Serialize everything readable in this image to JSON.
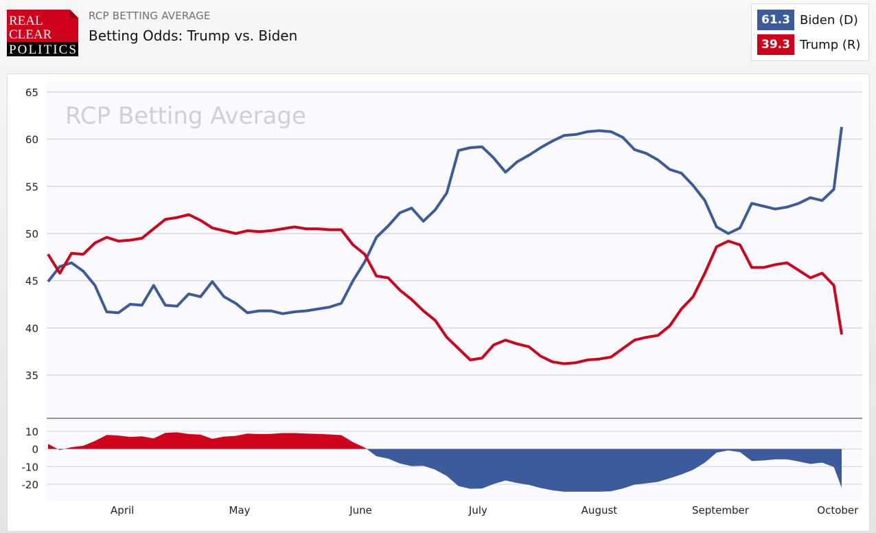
{
  "header": {
    "logo": {
      "line1": "REAL",
      "line2": "CLEAR",
      "line3": "POLITICS"
    },
    "kicker": "RCP BETTING AVERAGE",
    "title": "Betting Odds: Trump vs. Biden"
  },
  "legend": [
    {
      "value": "61.3",
      "name": "Biden (D)",
      "color": "#3c5b9a"
    },
    {
      "value": "39.3",
      "name": "Trump (R)",
      "color": "#d0021b"
    }
  ],
  "chart_data": [
    {
      "type": "line",
      "watermark": "RCP Betting Average",
      "ylim": [
        35,
        65
      ],
      "yticks": [
        "35",
        "40",
        "45",
        "50",
        "55",
        "60",
        "65"
      ],
      "xticks": [
        {
          "label": "April",
          "date": "2020-04-01"
        },
        {
          "label": "May",
          "date": "2020-05-01"
        },
        {
          "label": "June",
          "date": "2020-06-01"
        },
        {
          "label": "July",
          "date": "2020-07-01"
        },
        {
          "label": "August",
          "date": "2020-08-01"
        },
        {
          "label": "September",
          "date": "2020-09-01"
        },
        {
          "label": "October",
          "date": "2020-10-01"
        }
      ],
      "grid": true,
      "x": [
        "2020-03-13",
        "2020-03-16",
        "2020-03-19",
        "2020-03-22",
        "2020-03-25",
        "2020-03-28",
        "2020-03-31",
        "2020-04-03",
        "2020-04-06",
        "2020-04-09",
        "2020-04-12",
        "2020-04-15",
        "2020-04-18",
        "2020-04-21",
        "2020-04-24",
        "2020-04-27",
        "2020-04-30",
        "2020-05-03",
        "2020-05-06",
        "2020-05-09",
        "2020-05-12",
        "2020-05-15",
        "2020-05-18",
        "2020-05-21",
        "2020-05-24",
        "2020-05-27",
        "2020-05-30",
        "2020-06-02",
        "2020-06-05",
        "2020-06-08",
        "2020-06-11",
        "2020-06-14",
        "2020-06-17",
        "2020-06-20",
        "2020-06-23",
        "2020-06-26",
        "2020-06-29",
        "2020-07-02",
        "2020-07-05",
        "2020-07-08",
        "2020-07-11",
        "2020-07-14",
        "2020-07-17",
        "2020-07-20",
        "2020-07-23",
        "2020-07-26",
        "2020-07-29",
        "2020-08-01",
        "2020-08-04",
        "2020-08-07",
        "2020-08-10",
        "2020-08-13",
        "2020-08-16",
        "2020-08-19",
        "2020-08-22",
        "2020-08-25",
        "2020-08-28",
        "2020-08-31",
        "2020-09-03",
        "2020-09-06",
        "2020-09-09",
        "2020-09-12",
        "2020-09-15",
        "2020-09-18",
        "2020-09-21",
        "2020-09-24",
        "2020-09-27",
        "2020-09-30",
        "2020-10-02"
      ],
      "series": [
        {
          "name": "Biden (D)",
          "color": "#3c5b9a",
          "values": [
            44.9,
            46.5,
            46.9,
            46.0,
            44.5,
            41.7,
            41.6,
            42.5,
            42.4,
            44.5,
            42.4,
            42.3,
            43.6,
            43.3,
            44.9,
            43.3,
            42.6,
            41.6,
            41.8,
            41.8,
            41.5,
            41.7,
            41.8,
            42.0,
            42.2,
            42.6,
            45.0,
            47.0,
            49.6,
            50.8,
            52.2,
            52.7,
            51.3,
            52.5,
            54.3,
            58.8,
            59.1,
            59.2,
            58.0,
            56.5,
            57.6,
            58.3,
            59.1,
            59.8,
            60.4,
            60.5,
            60.8,
            60.9,
            60.8,
            60.2,
            58.9,
            58.5,
            57.8,
            56.8,
            56.4,
            55.1,
            53.5,
            50.7,
            50.0,
            50.6,
            53.2,
            52.9,
            52.6,
            52.8,
            53.2,
            53.8,
            53.5,
            54.7,
            61.3
          ]
        },
        {
          "name": "Trump (R)",
          "color": "#d0021b",
          "values": [
            47.8,
            45.8,
            47.9,
            47.8,
            49.0,
            49.6,
            49.2,
            49.3,
            49.5,
            50.5,
            51.5,
            51.7,
            52.0,
            51.4,
            50.6,
            50.3,
            50.0,
            50.3,
            50.2,
            50.3,
            50.5,
            50.7,
            50.5,
            50.5,
            50.4,
            50.4,
            48.8,
            47.8,
            45.5,
            45.3,
            44.0,
            43.0,
            41.8,
            40.8,
            39.0,
            37.8,
            36.6,
            36.8,
            38.2,
            38.7,
            38.3,
            38.0,
            37.0,
            36.4,
            36.2,
            36.3,
            36.6,
            36.7,
            36.9,
            37.8,
            38.7,
            39.0,
            39.2,
            40.2,
            42.0,
            43.3,
            45.8,
            48.6,
            49.2,
            48.8,
            46.4,
            46.4,
            46.7,
            46.9,
            46.1,
            45.3,
            45.8,
            44.5,
            39.3
          ]
        }
      ]
    },
    {
      "type": "area",
      "ylim": [
        -25,
        15
      ],
      "yticks": [
        "-20",
        "-10",
        "0",
        "10"
      ],
      "positive_color": "#d0021b",
      "negative_color": "#3c5b9a"
    }
  ]
}
